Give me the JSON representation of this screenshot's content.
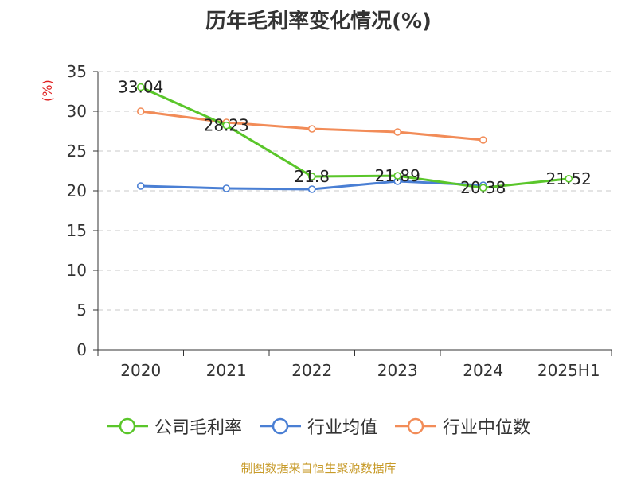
{
  "page": {
    "title": "历年毛利率变化情况(%)",
    "ylabel": "(%)",
    "footer": "制图数据来自恒生聚源数据库"
  },
  "chart_data": {
    "type": "line",
    "title": "历年毛利率变化情况(%)",
    "xlabel": "",
    "ylabel": "(%)",
    "categories": [
      "2020",
      "2021",
      "2022",
      "2023",
      "2024",
      "2025H1"
    ],
    "ylim": [
      0,
      35
    ],
    "yticks": [
      0,
      5,
      10,
      15,
      20,
      25,
      30,
      35
    ],
    "grid": true,
    "legend_position": "bottom",
    "series": [
      {
        "name": "公司毛利率",
        "color": "#5ac62a",
        "values": [
          33.04,
          28.23,
          21.8,
          21.89,
          20.38,
          21.52
        ],
        "labels": [
          "33.04",
          "28.23",
          "21.8",
          "21.89",
          "20.38",
          "21.52"
        ]
      },
      {
        "name": "行业均值",
        "color": "#4a7fd4",
        "values": [
          20.6,
          20.3,
          20.2,
          21.2,
          20.7,
          null
        ]
      },
      {
        "name": "行业中位数",
        "color": "#f28c58",
        "values": [
          30.0,
          28.6,
          27.8,
          27.4,
          26.4,
          null
        ]
      }
    ]
  }
}
